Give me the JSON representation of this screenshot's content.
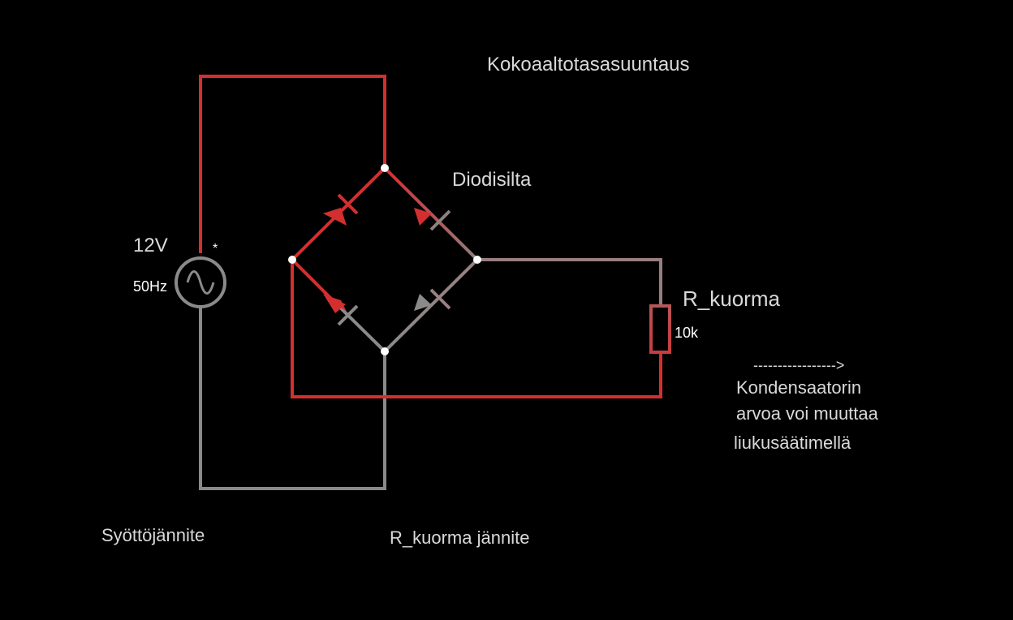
{
  "title": "Kokoaaltotasasuuntaus",
  "bridge_label": "Diodisilta",
  "source": {
    "voltage": "12V",
    "frequency": "50Hz",
    "marker": "*"
  },
  "load": {
    "name": "R_kuorma",
    "value": "10k"
  },
  "notes": {
    "arrow": "----------------->",
    "line1": "Kondensaatorin",
    "line2": "arvoa voi muuttaa",
    "line3": "liukusäätimellä"
  },
  "scope_labels": {
    "supply": "Syöttöjännite",
    "load": "R_kuorma jännite"
  },
  "colors": {
    "active": "#d32f2f",
    "inactive": "#8a8a8a",
    "transition": "#9a7d7d",
    "node": "#ffffff",
    "background": "#000000"
  }
}
